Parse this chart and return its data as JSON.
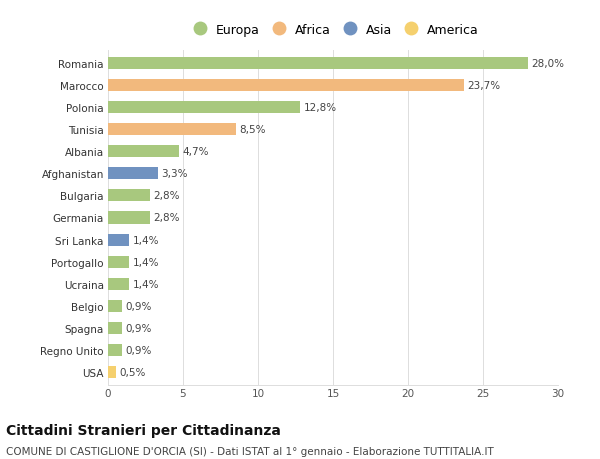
{
  "countries": [
    "Romania",
    "Marocco",
    "Polonia",
    "Tunisia",
    "Albania",
    "Afghanistan",
    "Bulgaria",
    "Germania",
    "Sri Lanka",
    "Portogallo",
    "Ucraina",
    "Belgio",
    "Spagna",
    "Regno Unito",
    "USA"
  ],
  "values": [
    28.0,
    23.7,
    12.8,
    8.5,
    4.7,
    3.3,
    2.8,
    2.8,
    1.4,
    1.4,
    1.4,
    0.9,
    0.9,
    0.9,
    0.5
  ],
  "labels": [
    "28,0%",
    "23,7%",
    "12,8%",
    "8,5%",
    "4,7%",
    "3,3%",
    "2,8%",
    "2,8%",
    "1,4%",
    "1,4%",
    "1,4%",
    "0,9%",
    "0,9%",
    "0,9%",
    "0,5%"
  ],
  "continents": [
    "Europa",
    "Africa",
    "Europa",
    "Africa",
    "Europa",
    "Asia",
    "Europa",
    "Europa",
    "Asia",
    "Europa",
    "Europa",
    "Europa",
    "Europa",
    "Europa",
    "America"
  ],
  "colors": {
    "Europa": "#a8c87e",
    "Africa": "#f2b97d",
    "Asia": "#7092c0",
    "America": "#f5d06e"
  },
  "legend_order": [
    "Europa",
    "Africa",
    "Asia",
    "America"
  ],
  "title": "Cittadini Stranieri per Cittadinanza",
  "subtitle": "COMUNE DI CASTIGLIONE D'ORCIA (SI) - Dati ISTAT al 1° gennaio - Elaborazione TUTTITALIA.IT",
  "xlim": [
    0,
    30
  ],
  "xticks": [
    0,
    5,
    10,
    15,
    20,
    25,
    30
  ],
  "background_color": "#ffffff",
  "bar_height": 0.55,
  "title_fontsize": 10,
  "subtitle_fontsize": 7.5,
  "label_fontsize": 7.5,
  "tick_fontsize": 7.5,
  "legend_fontsize": 9
}
